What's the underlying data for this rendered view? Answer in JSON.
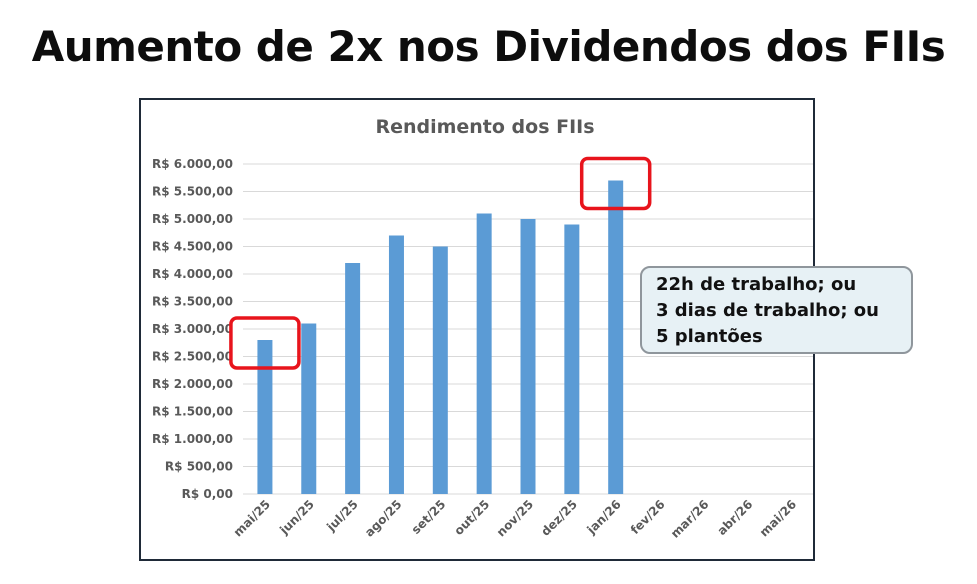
{
  "headline": "Aumento de 2x nos Dividendos dos FIIs",
  "callout": {
    "lines": [
      "22h de trabalho; ou",
      "3 dias de trabalho; ou",
      "5 plantões"
    ]
  },
  "colors": {
    "bar": "#5b9bd5",
    "highlight": "#e8141c",
    "grid": "#d9d9d9",
    "axis_text": "#595959",
    "callout_bg": "#e7f1f5"
  },
  "chart_data": {
    "type": "bar",
    "title": "Rendimento dos FIIs",
    "categories": [
      "mai/25",
      "jun/25",
      "jul/25",
      "ago/25",
      "set/25",
      "out/25",
      "nov/25",
      "dez/25",
      "jan/26",
      "fev/26",
      "mar/26",
      "abr/26",
      "mai/26"
    ],
    "values": [
      2800,
      3100,
      4200,
      4700,
      4500,
      5100,
      5000,
      4900,
      5700,
      null,
      null,
      null,
      null
    ],
    "ylim": [
      0,
      6000
    ],
    "yticks": [
      0,
      500,
      1000,
      1500,
      2000,
      2500,
      3000,
      3500,
      4000,
      4500,
      5000,
      5500,
      6000
    ],
    "ytick_labels": [
      "R$ 0,00",
      "R$ 500,00",
      "R$ 1.000,00",
      "R$ 1.500,00",
      "R$ 2.000,00",
      "R$ 2.500,00",
      "R$ 3.000,00",
      "R$ 3.500,00",
      "R$ 4.000,00",
      "R$ 4.500,00",
      "R$ 5.000,00",
      "R$ 5.500,00",
      "R$ 6.000,00"
    ],
    "grid": true,
    "legend": "none",
    "highlighted_categories": [
      "mai/25",
      "jan/26"
    ]
  }
}
